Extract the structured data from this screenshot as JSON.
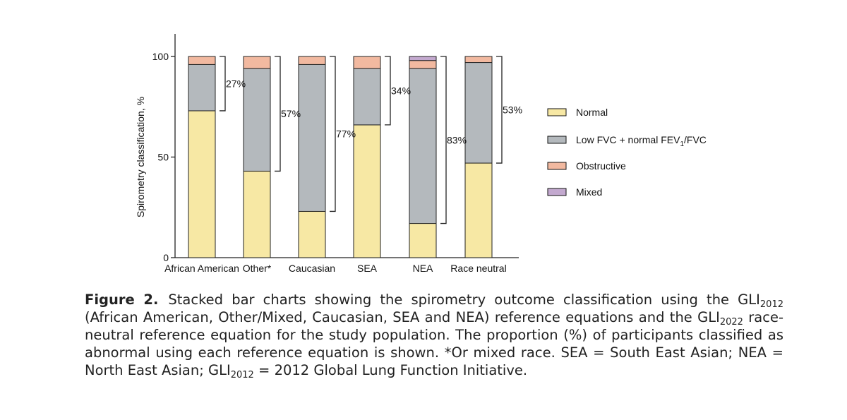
{
  "chart_data": {
    "type": "bar",
    "stacked": true,
    "categories": [
      "African American",
      "Other*",
      "Caucasian",
      "SEA",
      "NEA",
      "Race neutral"
    ],
    "series": [
      {
        "name": "Normal",
        "color": "#f7e8a4",
        "values": [
          73,
          43,
          23,
          66,
          17,
          47
        ]
      },
      {
        "name": "Low FVC + normal FEV1/FVC",
        "color": "#b4b9bd",
        "values": [
          23,
          51,
          73,
          28,
          77,
          50
        ]
      },
      {
        "name": "Obstructive",
        "color": "#f2b9a0",
        "values": [
          4,
          6,
          4,
          6,
          4,
          3
        ]
      },
      {
        "name": "Mixed",
        "color": "#c3a9cf",
        "values": [
          0,
          0,
          0,
          0,
          2,
          0
        ]
      }
    ],
    "abnormal_labels": [
      "27%",
      "57%",
      "77%",
      "34%",
      "83%",
      "53%"
    ],
    "ylabel": "Spirometry classification, %",
    "xlabel": "",
    "ylim": [
      0,
      100
    ],
    "yticks": [
      0,
      50,
      100
    ],
    "legend_position": "right",
    "grid": false
  },
  "legend": {
    "normal": "Normal",
    "low_fvc_prefix": "Low FVC + normal FEV",
    "low_fvc_sub": "1",
    "low_fvc_suffix": "/FVC",
    "obstructive": "Obstructive",
    "mixed": "Mixed"
  },
  "caption": {
    "label": "Figure 2.",
    "t1": "Stacked bar charts showing the spirometry outcome classification using the GLI",
    "s1": "2012",
    "t2": " (African American, Other/Mixed, Caucasian, SEA and NEA) reference equations and the GLI",
    "s2": "2022",
    "t3": " race-neutral reference equation for the study population. The proportion (%) of participants classified as abnormal using each reference equation is shown. *Or mixed race. SEA = South East Asian; NEA = North East Asian; GLI",
    "s3": "2012",
    "t4": " = 2012 Global Lung Function Initiative."
  }
}
